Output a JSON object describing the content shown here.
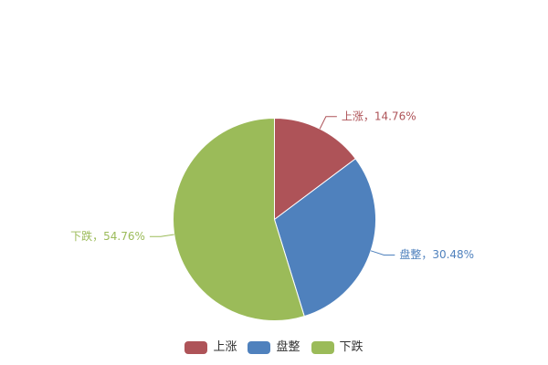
{
  "chart_data": {
    "type": "pie",
    "title": "",
    "categories": [
      "上涨",
      "盘整",
      "下跌"
    ],
    "values": [
      14.76,
      30.48,
      54.76
    ],
    "unit": "%",
    "colors": [
      "#AE5358",
      "#4F81BD",
      "#9BBB59"
    ],
    "slice_labels": [
      "上涨，14.76%",
      "盘整，30.48%",
      "下跌，54.76%"
    ],
    "label_separator": "，",
    "start_angle": "top",
    "direction": "clockwise",
    "background_color": "#FFFFFF",
    "slice_border_color": "#FFFFFF",
    "legend": {
      "position": "bottom",
      "items": [
        "上涨",
        "盘整",
        "下跌"
      ],
      "text_color": "#333333"
    }
  }
}
